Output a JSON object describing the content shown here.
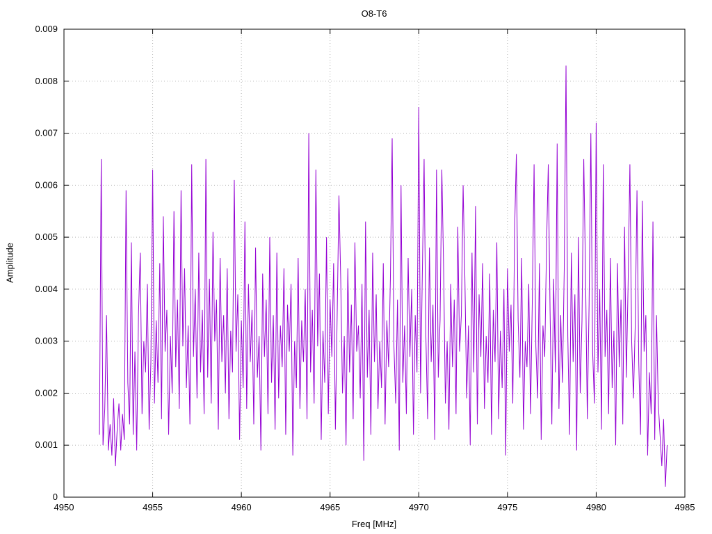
{
  "chart_data": {
    "type": "line",
    "title": "O8-T6",
    "xlabel": "Freq [MHz]",
    "ylabel": "Amplitude",
    "xlim": [
      4950,
      4985
    ],
    "ylim": [
      0,
      0.009
    ],
    "x_ticks": [
      4950,
      4955,
      4960,
      4965,
      4970,
      4975,
      4980,
      4985
    ],
    "x_tick_labels": [
      "4950",
      "4955",
      "4960",
      "4965",
      "4970",
      "4975",
      "4980",
      "4985"
    ],
    "y_ticks": [
      0,
      0.001,
      0.002,
      0.003,
      0.004,
      0.005,
      0.006,
      0.007,
      0.008,
      0.009
    ],
    "y_tick_labels": [
      "0",
      "0.001",
      "0.002",
      "0.003",
      "0.004",
      "0.005",
      "0.006",
      "0.007",
      "0.008",
      "0.009"
    ],
    "grid": true,
    "legend": "none",
    "line_color": "#9400D3",
    "grid_color": "#b0b0b0",
    "border_color": "#000000",
    "x_start": 4952.0,
    "x_step": 0.1,
    "y_scale": 0.0001,
    "y_values": [
      12,
      65,
      10,
      17,
      35,
      9,
      14,
      8,
      19,
      6,
      13,
      18,
      9,
      16,
      11,
      59,
      22,
      14,
      49,
      12,
      28,
      9,
      35,
      47,
      16,
      30,
      24,
      41,
      13,
      26,
      63,
      18,
      34,
      22,
      45,
      15,
      54,
      28,
      36,
      12,
      31,
      20,
      55,
      25,
      38,
      17,
      59,
      29,
      44,
      21,
      33,
      14,
      64,
      27,
      40,
      19,
      47,
      24,
      36,
      16,
      65,
      23,
      42,
      18,
      51,
      30,
      38,
      13,
      46,
      26,
      35,
      20,
      44,
      15,
      32,
      24,
      61,
      28,
      39,
      11,
      34,
      21,
      53,
      17,
      41,
      26,
      36,
      14,
      48,
      23,
      31,
      9,
      43,
      27,
      38,
      16,
      50,
      22,
      35,
      13,
      47,
      19,
      33,
      25,
      44,
      12,
      37,
      28,
      41,
      8,
      30,
      21,
      46,
      17,
      34,
      26,
      40,
      15,
      70,
      24,
      36,
      18,
      63,
      29,
      43,
      11,
      32,
      22,
      50,
      16,
      38,
      27,
      45,
      13,
      35,
      58,
      42,
      20,
      31,
      10,
      44,
      24,
      37,
      15,
      49,
      28,
      33,
      19,
      41,
      7,
      53,
      23,
      36,
      12,
      47,
      26,
      39,
      17,
      30,
      21,
      45,
      14,
      34,
      25,
      42,
      69,
      29,
      18,
      38,
      9,
      60,
      22,
      33,
      16,
      46,
      27,
      40,
      12,
      35,
      24,
      75,
      20,
      43,
      65,
      31,
      15,
      48,
      26,
      37,
      11,
      63,
      23,
      34,
      63,
      44,
      18,
      30,
      13,
      41,
      25,
      38,
      16,
      52,
      28,
      35,
      60,
      42,
      19,
      33,
      10,
      47,
      24,
      56,
      14,
      39,
      27,
      45,
      17,
      31,
      22,
      43,
      12,
      36,
      26,
      49,
      15,
      32,
      21,
      40,
      8,
      44,
      28,
      37,
      18,
      51,
      66,
      34,
      23,
      46,
      13,
      30,
      25,
      41,
      16,
      38,
      64,
      29,
      19,
      45,
      11,
      33,
      27,
      48,
      64,
      36,
      14,
      42,
      24,
      68,
      17,
      35,
      22,
      44,
      83,
      31,
      12,
      47,
      26,
      39,
      9,
      50,
      20,
      34,
      65,
      43,
      15,
      37,
      70,
      28,
      18,
      72,
      24,
      40,
      13,
      64,
      27,
      36,
      16,
      46,
      21,
      32,
      10,
      45,
      25,
      38,
      14,
      52,
      23,
      41,
      64,
      30,
      19,
      33,
      59,
      26,
      12,
      57,
      28,
      35,
      8,
      24,
      16,
      53,
      11,
      35,
      18,
      12,
      6,
      15,
      2,
      10
    ]
  }
}
